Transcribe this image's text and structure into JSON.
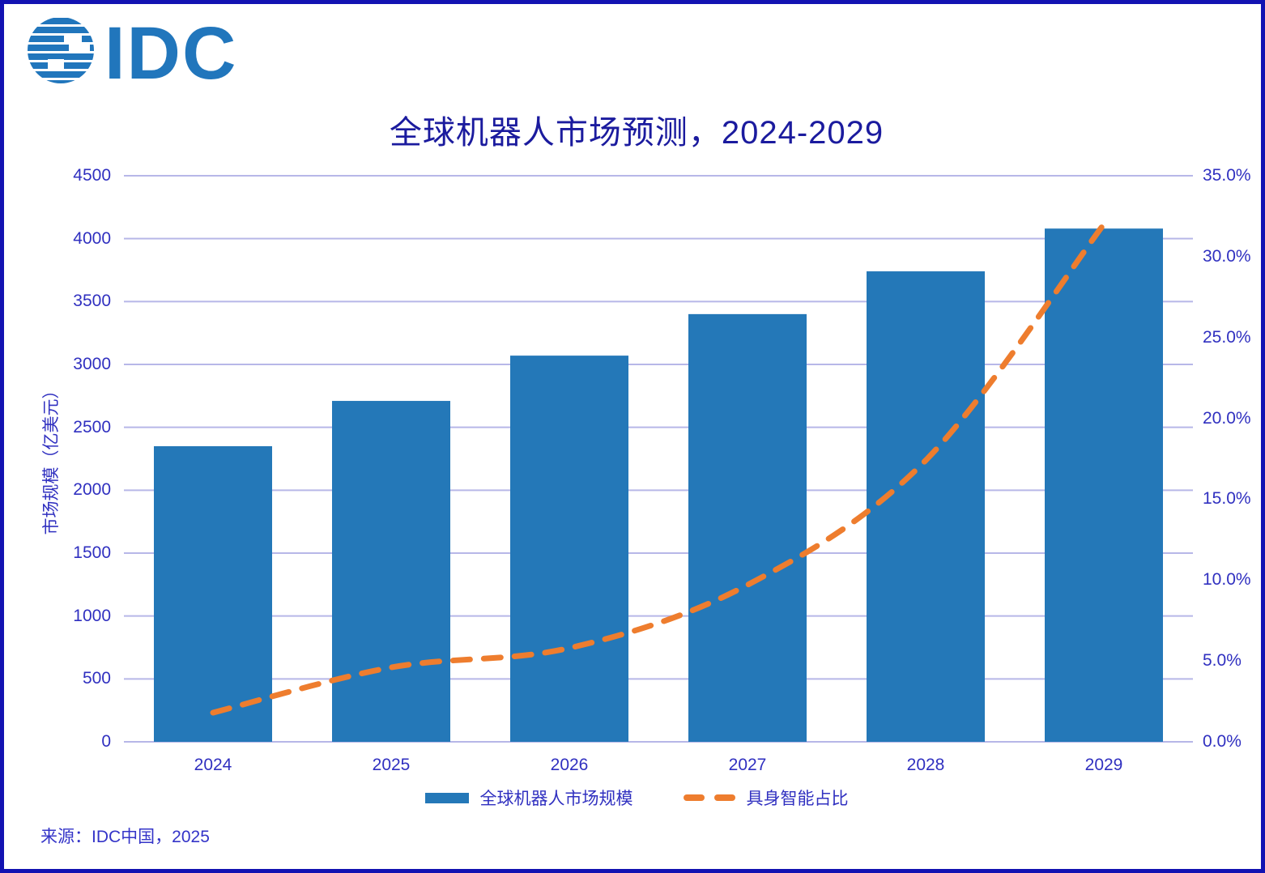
{
  "logo": {
    "text": "IDC"
  },
  "title": "全球机器人市场预测，2024-2029",
  "source": "来源：IDC中国，2025",
  "colors": {
    "bar": "#2478b8",
    "line": "#ee7d2e",
    "logo_blue": "#2176bc",
    "title_text": "#1b1b9e",
    "axis_text": "#3030c0",
    "grid": "#b7b7e8",
    "frame_border": "#1212b2"
  },
  "chart_data": {
    "type": "bar",
    "subtype": "bar+line dual-axis combo",
    "title": "全球机器人市场预测，2024-2029",
    "categories": [
      "2024",
      "2025",
      "2026",
      "2027",
      "2028",
      "2029"
    ],
    "series": [
      {
        "name": "全球机器人市场规模",
        "type": "bar",
        "axis": "left",
        "unit": "亿美元",
        "values": [
          2350,
          2710,
          3070,
          3400,
          3740,
          4080
        ]
      },
      {
        "name": "具身智能占比",
        "type": "line",
        "style": "dashed",
        "axis": "right",
        "unit": "%",
        "values": [
          1.8,
          4.6,
          5.8,
          9.7,
          17.4,
          32.0
        ]
      }
    ],
    "left_axis": {
      "label": "市场规模（亿美元）",
      "min": 0,
      "max": 4500,
      "step": 500,
      "tick_labels": [
        "0",
        "500",
        "1000",
        "1500",
        "2000",
        "2500",
        "3000",
        "3500",
        "4000",
        "4500"
      ]
    },
    "right_axis": {
      "min": 0,
      "max": 35,
      "step": 5,
      "tick_labels": [
        "0.0%",
        "5.0%",
        "10.0%",
        "15.0%",
        "20.0%",
        "25.0%",
        "30.0%",
        "35.0%"
      ]
    },
    "legend": [
      {
        "label": "全球机器人市场规模",
        "marker": "blue-bar-swatch"
      },
      {
        "label": "具身智能占比",
        "marker": "orange-dash-swatch"
      }
    ],
    "grid": "horizontal-gridlines-on",
    "legend_position": "bottom-center"
  }
}
